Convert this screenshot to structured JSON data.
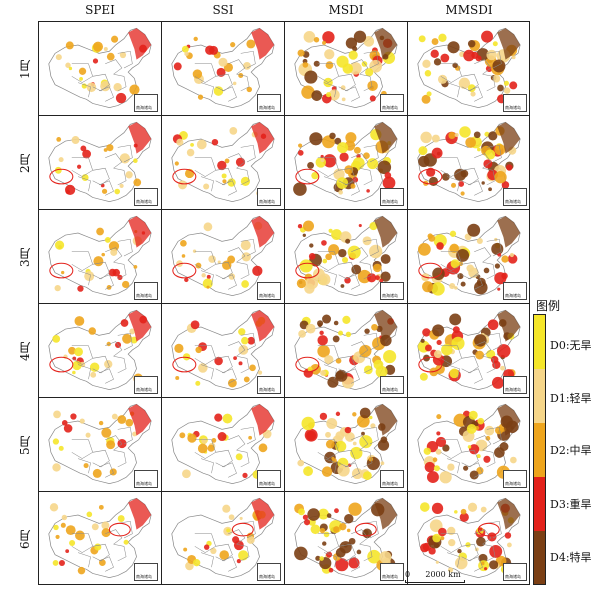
{
  "columns": [
    "SPEI",
    "SSI",
    "MSDI",
    "MMSDI"
  ],
  "rows": [
    "1月",
    "2月",
    "3月",
    "4月",
    "5月",
    "6月"
  ],
  "inset_label": "南海诸岛",
  "legend": {
    "title": "图例",
    "items": [
      {
        "label": "D0:无旱",
        "color": "#f5e62a"
      },
      {
        "label": "D1:轻旱",
        "color": "#f6d68a"
      },
      {
        "label": "D2:中旱",
        "color": "#eea51d"
      },
      {
        "label": "D3:重旱",
        "color": "#e3221b"
      },
      {
        "label": "D4:特旱",
        "color": "#7b3f14"
      }
    ]
  },
  "scale_bar": {
    "zero": "0",
    "distance": "2000 km"
  },
  "colors": {
    "border": "#8a8a8a",
    "highlight": "#e3221b"
  }
}
